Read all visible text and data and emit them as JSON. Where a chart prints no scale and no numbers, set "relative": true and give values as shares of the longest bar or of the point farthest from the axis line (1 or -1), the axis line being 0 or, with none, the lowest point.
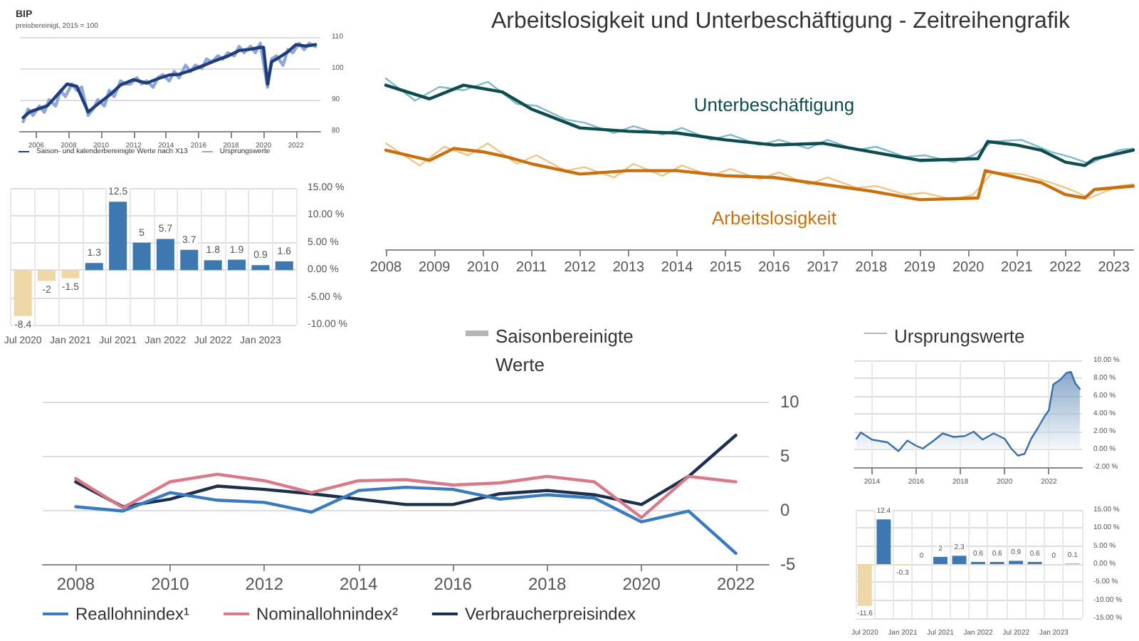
{
  "chart_data": [
    {
      "type": "line",
      "title": "BIP",
      "subtitle": "preisbereinigt, 2015 = 100",
      "xlim": [
        2005,
        2023.5
      ],
      "xticks": [
        2006,
        2008,
        2010,
        2012,
        2014,
        2016,
        2018,
        2020,
        2022
      ],
      "ylim": [
        80,
        110
      ],
      "yticks": [
        80,
        90,
        100,
        110
      ],
      "grid": "y",
      "legend": "bottom left",
      "marker": "none",
      "series": [
        {
          "name": "Saison- und kalenderbereinigte Werte nach X13",
          "color": "#1f3d7a",
          "x": [
            2005.2,
            2005.6,
            2006.7,
            2007.9,
            2008.5,
            2009.2,
            2009.8,
            2010.5,
            2011.2,
            2012,
            2012.8,
            2013.5,
            2014.2,
            2014.8,
            2015.5,
            2016.2,
            2017,
            2017.8,
            2018.5,
            2019.2,
            2019.8,
            2020,
            2020.25,
            2020.5,
            2021,
            2021.5,
            2022,
            2022.6,
            2023.2
          ],
          "values": [
            84.3,
            86.1,
            88.1,
            95,
            94.3,
            86.1,
            88.6,
            91.4,
            94.7,
            96.4,
            95.3,
            96.7,
            97.9,
            98.1,
            99.3,
            100.7,
            102.4,
            103.9,
            105.7,
            106.1,
            106.7,
            106.7,
            95,
            102.1,
            103.6,
            105.3,
            107.6,
            107.1,
            107.6
          ]
        },
        {
          "name": "Ursprungswerte",
          "color": "#8fa6d6",
          "x": [
            2005.2,
            2005.5,
            2005.8,
            2006.2,
            2006.5,
            2006.8,
            2007.2,
            2007.5,
            2007.8,
            2008.2,
            2008.5,
            2008.8,
            2009.2,
            2009.5,
            2009.8,
            2010.2,
            2010.5,
            2010.8,
            2011.2,
            2011.5,
            2011.8,
            2012.2,
            2012.5,
            2012.8,
            2013.2,
            2013.5,
            2013.8,
            2014.2,
            2014.5,
            2014.8,
            2015.2,
            2015.5,
            2015.8,
            2016.2,
            2016.5,
            2016.8,
            2017.2,
            2017.5,
            2017.8,
            2018.2,
            2018.5,
            2018.8,
            2019.2,
            2019.5,
            2019.8,
            2020.25,
            2020.5,
            2020.8,
            2021.2,
            2021.5,
            2021.8,
            2022.2,
            2022.5,
            2022.8,
            2023.2
          ],
          "values": [
            83,
            87,
            85,
            88,
            86,
            90,
            88,
            93,
            91,
            95,
            93,
            94,
            85,
            87,
            90,
            88,
            93,
            91,
            96,
            95,
            95,
            97,
            95,
            96,
            94,
            97,
            98,
            96,
            99,
            97,
            101,
            99,
            101,
            100,
            103,
            102,
            104,
            103,
            105,
            104,
            107,
            105,
            107,
            105,
            108,
            94,
            103,
            104,
            101,
            106,
            105,
            108,
            106,
            108,
            107
          ]
        }
      ]
    },
    {
      "type": "bar",
      "categories": [
        "Jul 2020",
        null,
        "Jan 2021",
        null,
        "Jul 2021",
        null,
        "Jan 2022",
        null,
        "Jul 2022",
        null,
        "Jan 2023",
        null
      ],
      "values": [
        -8.4,
        -2,
        -1.5,
        1.3,
        12.5,
        5,
        5.7,
        3.7,
        1.8,
        1.9,
        0.9,
        1.6
      ],
      "colors": [
        "#f0d7a7",
        "#f0d7a7",
        "#f0d7a7",
        "#3d78b0",
        "#3d78b0",
        "#3d78b0",
        "#3d78b0",
        "#3d78b0",
        "#3d78b0",
        "#3d78b0",
        "#3d78b0",
        "#3d78b0"
      ],
      "ylim": [
        -10,
        15
      ],
      "yticks": [
        {
          "value": -10,
          "label": "-10.00 %"
        },
        {
          "value": -5,
          "label": "-5.00 %"
        },
        {
          "value": 0,
          "label": "0.00 %"
        },
        {
          "value": 5,
          "label": "5.00 %"
        },
        {
          "value": 10,
          "label": "10.00 %"
        },
        {
          "value": 15,
          "label": "15.00 %"
        }
      ],
      "grid": true,
      "data_labels": true
    },
    {
      "type": "line",
      "title": "Arbeitslosigkeit und Unterbeschäftigung - Zeitreihengrafik",
      "relative": true,
      "xlim": [
        2008,
        2023.4
      ],
      "xticks": [
        2008,
        2009,
        2010,
        2011,
        2012,
        2013,
        2014,
        2015,
        2016,
        2017,
        2018,
        2019,
        2020,
        2021,
        2022,
        2023
      ],
      "marker": "none",
      "annotations": [
        "Saisonbereinigte Werte",
        "Ursprungswerte"
      ],
      "series": [
        {
          "name": "Unterbeschäftigung",
          "color": "#0f4c4f",
          "x": [
            2008,
            2008.9,
            2009.6,
            2010,
            2010.4,
            2011,
            2012,
            2013,
            2014,
            2015,
            2016,
            2017,
            2018,
            2019,
            2020.2,
            2020.4,
            2021,
            2021.5,
            2022,
            2022.4,
            2022.6,
            2023.4
          ],
          "values": [
            0.96,
            0.88,
            0.96,
            0.94,
            0.92,
            0.82,
            0.71,
            0.69,
            0.68,
            0.64,
            0.61,
            0.62,
            0.57,
            0.52,
            0.53,
            0.63,
            0.61,
            0.58,
            0.51,
            0.49,
            0.53,
            0.58
          ]
        },
        {
          "color": "#7fbccb",
          "x": [
            2008,
            2008.6,
            2009.1,
            2009.6,
            2010.1,
            2010.7,
            2011.1,
            2011.7,
            2012.1,
            2012.7,
            2013.1,
            2013.7,
            2014.1,
            2014.7,
            2015.1,
            2015.7,
            2016.1,
            2016.7,
            2017.1,
            2017.7,
            2018.1,
            2018.7,
            2019.1,
            2019.7,
            2020.1,
            2020.5,
            2021.1,
            2021.7,
            2022.1,
            2022.5,
            2023.1,
            2023.4
          ],
          "values": [
            1,
            0.87,
            0.95,
            0.93,
            0.98,
            0.85,
            0.84,
            0.76,
            0.74,
            0.68,
            0.72,
            0.67,
            0.71,
            0.64,
            0.67,
            0.61,
            0.64,
            0.59,
            0.64,
            0.58,
            0.6,
            0.54,
            0.55,
            0.51,
            0.55,
            0.63,
            0.64,
            0.57,
            0.54,
            0.5,
            0.58,
            0.59
          ]
        },
        {
          "name": "Arbeitslosigkeit",
          "color": "#c8700f",
          "x": [
            2008,
            2008.9,
            2009.4,
            2010,
            2010.5,
            2011,
            2012,
            2013,
            2014,
            2015,
            2016,
            2017,
            2018,
            2019,
            2020.2,
            2020.35,
            2021,
            2021.5,
            2022,
            2022.4,
            2022.6,
            2023.4
          ],
          "values": [
            0.58,
            0.52,
            0.59,
            0.57,
            0.54,
            0.5,
            0.44,
            0.46,
            0.46,
            0.43,
            0.42,
            0.38,
            0.34,
            0.29,
            0.3,
            0.46,
            0.42,
            0.39,
            0.32,
            0.3,
            0.35,
            0.37
          ]
        },
        {
          "color": "#f0c585",
          "x": [
            2008,
            2008.7,
            2009.2,
            2009.7,
            2010.1,
            2010.7,
            2011.1,
            2011.7,
            2012.1,
            2012.7,
            2013.1,
            2013.7,
            2014.1,
            2014.7,
            2015.1,
            2015.7,
            2016.1,
            2016.7,
            2017.1,
            2017.7,
            2018.1,
            2018.7,
            2019.1,
            2019.7,
            2020.1,
            2020.5,
            2021.1,
            2021.7,
            2022.1,
            2022.5,
            2023.1,
            2023.4
          ],
          "values": [
            0.62,
            0.49,
            0.6,
            0.55,
            0.62,
            0.5,
            0.55,
            0.46,
            0.48,
            0.42,
            0.5,
            0.43,
            0.49,
            0.43,
            0.47,
            0.41,
            0.45,
            0.38,
            0.42,
            0.36,
            0.37,
            0.32,
            0.33,
            0.29,
            0.32,
            0.45,
            0.44,
            0.39,
            0.35,
            0.3,
            0.37,
            0.38
          ]
        }
      ]
    },
    {
      "type": "line",
      "x": [
        2008,
        2009,
        2010,
        2011,
        2012,
        2013,
        2014,
        2015,
        2016,
        2017,
        2018,
        2019,
        2020,
        2021,
        2022
      ],
      "xlim": [
        2007.3,
        2022.7
      ],
      "xticks": [
        2008,
        2010,
        2012,
        2014,
        2016,
        2018,
        2020,
        2022
      ],
      "ylim": [
        -5,
        10
      ],
      "yticks": [
        -5,
        0,
        5,
        10
      ],
      "grid": "y",
      "legend": "bottom left",
      "marker": "none",
      "series": [
        {
          "name": "Reallohnindex¹",
          "color": "#3a7bbf",
          "values": [
            0.3,
            -0.1,
            1.6,
            0.9,
            0.7,
            -0.2,
            1.8,
            2.1,
            1.9,
            1.0,
            1.4,
            1.1,
            -1.1,
            -0.1,
            -4.0
          ]
        },
        {
          "name": "Nominallohnindex²",
          "color": "#d97a8a",
          "values": [
            2.9,
            0.2,
            2.6,
            3.3,
            2.7,
            1.6,
            2.7,
            2.8,
            2.3,
            2.5,
            3.1,
            2.6,
            -0.7,
            3.1,
            2.6
          ]
        },
        {
          "name": "Verbraucherpreisindex",
          "color": "#1d2f4f",
          "values": [
            2.6,
            0.3,
            1.0,
            2.2,
            1.9,
            1.5,
            1.0,
            0.5,
            0.5,
            1.5,
            1.8,
            1.4,
            0.5,
            3.1,
            6.9
          ]
        }
      ]
    },
    {
      "type": "area",
      "x": [
        2013.3,
        2013.5,
        2014,
        2014.7,
        2015.2,
        2015.6,
        2016,
        2016.3,
        2016.8,
        2017.2,
        2017.7,
        2018.2,
        2018.6,
        2019,
        2019.5,
        2020,
        2020.3,
        2020.6,
        2020.9,
        2021.2,
        2021.5,
        2021.8,
        2022,
        2022.2,
        2022.5,
        2022.8,
        2023,
        2023.2,
        2023.4
      ],
      "values": [
        1.2,
        1.9,
        1.1,
        0.8,
        -0.2,
        1.0,
        0.4,
        0.1,
        1.0,
        1.8,
        1.4,
        1.5,
        2.0,
        1.1,
        1.8,
        1.2,
        0.1,
        -0.7,
        -0.5,
        1.2,
        2.4,
        3.7,
        4.4,
        7.3,
        7.8,
        8.6,
        8.7,
        7.4,
        6.8
      ],
      "color": "#3a6fa8",
      "xlim": [
        2013.2,
        2023.5
      ],
      "xticks": [
        2014,
        2016,
        2018,
        2020,
        2022
      ],
      "ylim": [
        -2,
        10
      ],
      "yticks": [
        {
          "value": -2,
          "label": "-2.00 %"
        },
        {
          "value": 0,
          "label": "0.00 %"
        },
        {
          "value": 2,
          "label": "2.00 %"
        },
        {
          "value": 4,
          "label": "4.00 %"
        },
        {
          "value": 6,
          "label": "6.00 %"
        },
        {
          "value": 8,
          "label": "8.00 %"
        },
        {
          "value": 10,
          "label": "10.00 %"
        }
      ],
      "grid": true,
      "marker": "none"
    },
    {
      "type": "bar",
      "categories": [
        "Jul 2020",
        null,
        "Jan 2021",
        null,
        "Jul 2021",
        null,
        "Jan 2022",
        null,
        "Jul 2022",
        null,
        "Jan 2023",
        null
      ],
      "values": [
        -11.6,
        12.4,
        -0.3,
        0,
        2,
        2.3,
        0.6,
        0.6,
        0.9,
        0.6,
        0,
        0.1
      ],
      "colors": [
        "#f0d7a7",
        "#3d78b0",
        "#f0d7a7",
        "#3d78b0",
        "#3d78b0",
        "#3d78b0",
        "#3d78b0",
        "#3d78b0",
        "#3d78b0",
        "#3d78b0",
        "#3d78b0",
        "#3d78b0"
      ],
      "ylim": [
        -15,
        15
      ],
      "yticks": [
        {
          "value": -15,
          "label": "-15.00 %"
        },
        {
          "value": -10,
          "label": "-10.00 %"
        },
        {
          "value": -5,
          "label": "-5.00 %"
        },
        {
          "value": 0,
          "label": "0.00 %"
        },
        {
          "value": 5,
          "label": "5.00 %"
        },
        {
          "value": 10,
          "label": "10.00 %"
        },
        {
          "value": 15,
          "label": "15.00 %"
        }
      ],
      "grid": true,
      "data_labels": true
    }
  ]
}
